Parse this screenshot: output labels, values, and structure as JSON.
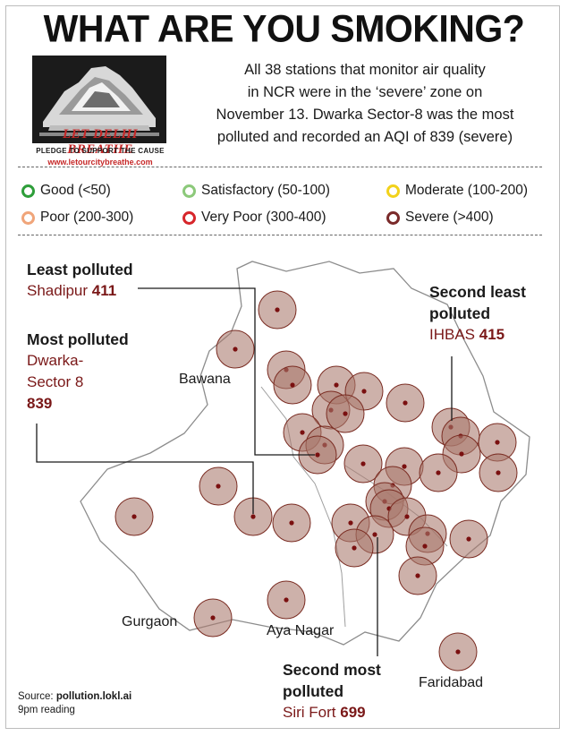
{
  "headline": "WHAT ARE YOU SMOKING?",
  "campaign": {
    "tagline": "LET DELHI BREATHE",
    "pledge": "PLEDGE TO SUPPORT THE CAUSE",
    "url": "www.letourcitybreathe.com"
  },
  "intro": {
    "line1": "All 38 stations that monitor air quality",
    "line2": "in NCR were in the ‘severe’ zone on",
    "line3": "November 13. Dwarka Sector-8 was the most",
    "line4": "polluted and recorded an AQI of 839 (severe)"
  },
  "legend": [
    {
      "label": "Good (<50)",
      "color": "#2e9e3a"
    },
    {
      "label": "Satisfactory (50-100)",
      "color": "#8cc97a"
    },
    {
      "label": "Moderate (100-200)",
      "color": "#f2d21b"
    },
    {
      "label": "Poor (200-300)",
      "color": "#f0a57a"
    },
    {
      "label": "Very Poor (300-400)",
      "color": "#d7262b"
    },
    {
      "label": "Severe (>400)",
      "color": "#7a2a2a"
    }
  ],
  "colors": {
    "severe_fill": "#a9796c",
    "severe_edge": "#7a2c22",
    "dot": "#7a1010",
    "outline": "#8c8c8c",
    "station_text": "#7a1818"
  },
  "map": {
    "station_count": 38,
    "places": {
      "bawana": "Bawana",
      "gurgaon": "Gurgaon",
      "aya_nagar": "Aya Nagar",
      "faridabad": "Faridabad"
    }
  },
  "callouts": {
    "least": {
      "category": "Least polluted",
      "station": "Shadipur",
      "aqi": "411"
    },
    "second_least": {
      "category_line1": "Second least",
      "category_line2": "polluted",
      "station": "IHBAS",
      "aqi": "415"
    },
    "most": {
      "category": "Most polluted",
      "station_line1": "Dwarka-",
      "station_line2": "Sector 8",
      "aqi": "839"
    },
    "second_most": {
      "category_line1": "Second most",
      "category_line2": "polluted",
      "station": "Siri Fort",
      "aqi": "699"
    }
  },
  "source": {
    "label": "Source:",
    "site": "pollution.lokl.ai",
    "note": "9pm reading"
  }
}
